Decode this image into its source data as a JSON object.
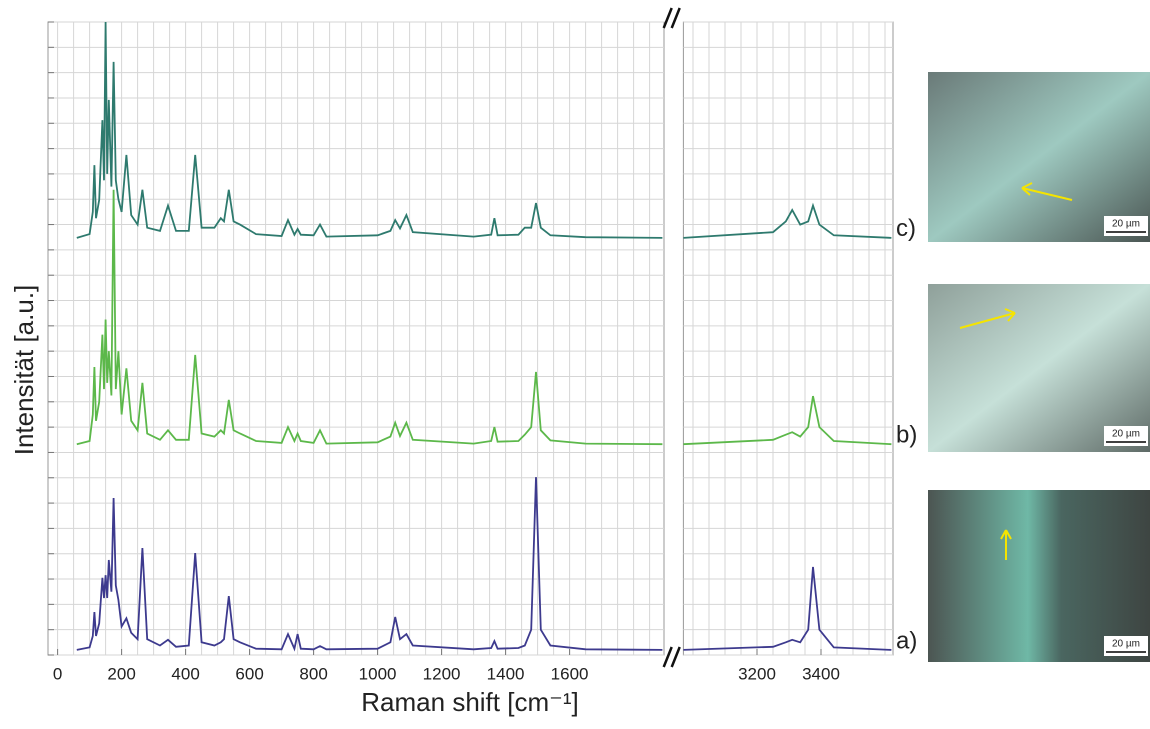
{
  "chart_data": {
    "type": "line",
    "xlabel": "Raman shift [cm⁻¹]",
    "ylabel": "Intensität [a.u.]",
    "xlim": [
      -30,
      3625
    ],
    "x_break": [
      1895,
      2970
    ],
    "ylim": [
      0,
      100
    ],
    "xticks": [
      0,
      200,
      400,
      600,
      800,
      1000,
      1200,
      1400,
      1600,
      3200,
      3400
    ],
    "grid": true,
    "x_grid_step": 50,
    "y_grid_step": 4,
    "x": [
      60,
      100,
      110,
      115,
      120,
      130,
      140,
      145,
      150,
      155,
      160,
      168,
      175,
      182,
      190,
      200,
      215,
      230,
      250,
      265,
      280,
      320,
      345,
      370,
      410,
      430,
      450,
      490,
      510,
      520,
      535,
      550,
      570,
      620,
      700,
      720,
      740,
      750,
      760,
      800,
      820,
      840,
      1000,
      1040,
      1055,
      1070,
      1090,
      1110,
      1300,
      1355,
      1365,
      1375,
      1440,
      1460,
      1480,
      1495,
      1510,
      1540,
      1650,
      1890,
      2970,
      3250,
      3290,
      3310,
      3335,
      3360,
      3375,
      3395,
      3440,
      3620
    ],
    "series": [
      {
        "name": "a)",
        "color": "#3d3a8e",
        "values": [
          0.8,
          1.2,
          3,
          6.8,
          3,
          5,
          12.2,
          9,
          12.6,
          9,
          15,
          10,
          24.8,
          11,
          8.7,
          4.5,
          5.8,
          3.5,
          2.5,
          16.9,
          2.5,
          1.5,
          2.4,
          1.3,
          1.5,
          16.1,
          2,
          1.5,
          2,
          2.5,
          9.3,
          2.5,
          2,
          1,
          0.9,
          3.3,
          1,
          3.3,
          1,
          0.9,
          1.4,
          0.9,
          1,
          2,
          6,
          2.5,
          3.3,
          1.5,
          0.9,
          1.1,
          2.2,
          1,
          1.1,
          1.5,
          4,
          28.1,
          4,
          1.5,
          0.9,
          0.8,
          0.8,
          1.3,
          2,
          2.4,
          2,
          4,
          13.9,
          4,
          1.2,
          0.8
        ]
      },
      {
        "name": "b)",
        "color": "#5cb84a",
        "values": [
          33.3,
          33.8,
          38,
          45.5,
          37,
          40,
          50.6,
          42,
          53,
          43,
          48,
          41,
          73.5,
          42,
          48,
          38,
          45.3,
          37,
          35.5,
          43,
          35,
          34,
          35.5,
          34,
          34,
          47.4,
          35,
          34.5,
          35.5,
          35,
          40.3,
          35.5,
          35,
          33.8,
          33.5,
          36,
          33.8,
          35,
          33.8,
          33.5,
          35.5,
          33.4,
          33.6,
          34.5,
          36.7,
          34.6,
          36.7,
          34,
          33.4,
          33.8,
          36,
          33.7,
          33.8,
          34.8,
          36,
          44.7,
          35.5,
          33.9,
          33.4,
          33.3,
          33.3,
          34,
          34.8,
          35.2,
          34.5,
          36,
          40.9,
          36,
          33.8,
          33.3
        ]
      },
      {
        "name": "c)",
        "color": "#2e7a6e",
        "values": [
          65.9,
          66.5,
          70,
          77.4,
          69,
          71.9,
          84.5,
          75,
          100,
          76,
          87.7,
          74,
          93.7,
          75,
          72,
          70,
          79,
          69.5,
          68,
          73.5,
          67.5,
          67,
          71,
          67,
          67,
          79,
          67.5,
          67.5,
          69,
          68.5,
          73.5,
          68.5,
          68,
          66.5,
          66.2,
          68.7,
          66.4,
          67.3,
          66.4,
          66.3,
          68,
          66.1,
          66.3,
          67,
          68.7,
          67.4,
          69.5,
          66.8,
          66.1,
          66.4,
          69,
          66.3,
          66.4,
          67.5,
          67.5,
          71.4,
          67.5,
          66.3,
          66,
          65.9,
          65.9,
          66.8,
          68.5,
          70.3,
          68,
          68.5,
          71,
          68,
          66.3,
          65.9
        ]
      }
    ]
  },
  "micrographs": [
    {
      "scale_bar": "20 µm"
    },
    {
      "scale_bar": "20 µm"
    },
    {
      "scale_bar": "20 µm"
    }
  ]
}
